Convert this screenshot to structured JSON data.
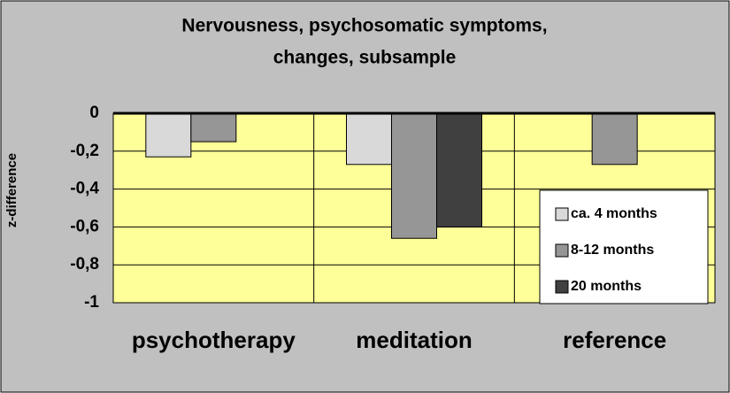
{
  "chart_data": {
    "type": "bar",
    "title": [
      "Nervousness, psychosomatic symptoms,",
      "changes, subsample"
    ],
    "y_label": "z-difference",
    "categories": [
      "psychotherapy",
      "meditation",
      "reference"
    ],
    "series": [
      {
        "name": "ca. 4 months",
        "color": "#d9d9d9",
        "values": [
          -0.23,
          -0.27,
          null
        ]
      },
      {
        "name": "8-12 months",
        "color": "#969696",
        "values": [
          -0.15,
          -0.66,
          -0.27
        ]
      },
      {
        "name": "20 months",
        "color": "#404040",
        "values": [
          null,
          -0.6,
          null
        ]
      }
    ],
    "ylim": [
      -1,
      0
    ],
    "yticks": [
      0,
      {
        "value": -0.2,
        "label": "-0,2"
      },
      {
        "value": -0.4,
        "label": "-0,4"
      },
      {
        "value": -0.6,
        "label": "-0,6"
      },
      {
        "value": -0.8,
        "label": "-0,8"
      },
      -1
    ],
    "grid": true,
    "background": "#ffff99"
  }
}
